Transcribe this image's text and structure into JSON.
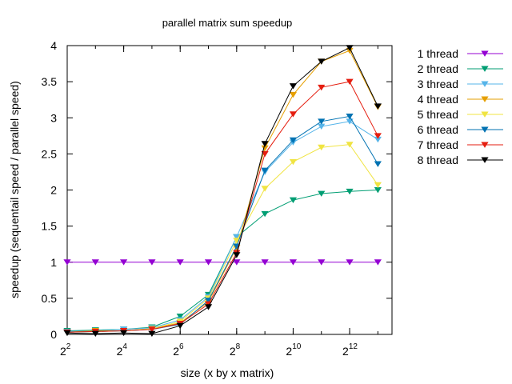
{
  "chart_data": {
    "type": "line",
    "title": "parallel matrix sum speedup",
    "xlabel": "size (x by x matrix)",
    "ylabel": "speedup (sequentail speed / parallel speed)",
    "x_scale": "log2",
    "xlim": [
      4,
      11585
    ],
    "ylim": [
      0,
      4
    ],
    "grid": false,
    "legend_position": "top-right-outside",
    "x_ticks": [
      {
        "value": 4,
        "base": "2",
        "exp": "2"
      },
      {
        "value": 16,
        "base": "2",
        "exp": "4"
      },
      {
        "value": 64,
        "base": "2",
        "exp": "6"
      },
      {
        "value": 256,
        "base": "2",
        "exp": "8"
      },
      {
        "value": 1024,
        "base": "2",
        "exp": "10"
      },
      {
        "value": 4096,
        "base": "2",
        "exp": "12"
      }
    ],
    "y_ticks": [
      "0",
      "0.5",
      "1",
      "1.5",
      "2",
      "2.5",
      "3",
      "3.5",
      "4"
    ],
    "x": [
      4,
      8,
      16,
      32,
      64,
      128,
      256,
      512,
      1024,
      2048,
      4096,
      8192
    ],
    "series": [
      {
        "name": "1 thread",
        "color": "#9400d3",
        "values": [
          1,
          1,
          1,
          1,
          1,
          1,
          1,
          1,
          1,
          1,
          1,
          1
        ]
      },
      {
        "name": "2 thread",
        "color": "#009e73",
        "values": [
          0.05,
          0.06,
          0.07,
          0.1,
          0.25,
          0.55,
          1.35,
          1.67,
          1.86,
          1.95,
          1.98,
          2.0
        ]
      },
      {
        "name": "3 thread",
        "color": "#56b4e9",
        "values": [
          0.04,
          0.05,
          0.07,
          0.09,
          0.2,
          0.52,
          1.35,
          2.25,
          2.66,
          2.88,
          2.95,
          2.7
        ]
      },
      {
        "name": "4 thread",
        "color": "#e69f00",
        "values": [
          0.03,
          0.05,
          0.05,
          0.08,
          0.16,
          0.45,
          1.2,
          2.58,
          3.32,
          3.78,
          3.93,
          3.15
        ]
      },
      {
        "name": "5 thread",
        "color": "#f0e442",
        "values": [
          0.03,
          0.04,
          0.05,
          0.08,
          0.18,
          0.5,
          1.3,
          2.02,
          2.39,
          2.59,
          2.63,
          2.07
        ]
      },
      {
        "name": "6 thread",
        "color": "#0072b2",
        "values": [
          0.03,
          0.04,
          0.05,
          0.07,
          0.14,
          0.47,
          1.22,
          2.27,
          2.69,
          2.95,
          3.02,
          2.36
        ]
      },
      {
        "name": "7 thread",
        "color": "#e51e10",
        "values": [
          0.03,
          0.04,
          0.05,
          0.07,
          0.15,
          0.42,
          1.13,
          2.5,
          3.05,
          3.42,
          3.5,
          2.75
        ]
      },
      {
        "name": "8 thread",
        "color": "#000000",
        "values": [
          0.02,
          0.01,
          0.02,
          0.01,
          0.12,
          0.38,
          1.1,
          2.64,
          3.44,
          3.78,
          3.97,
          3.16
        ]
      }
    ]
  }
}
